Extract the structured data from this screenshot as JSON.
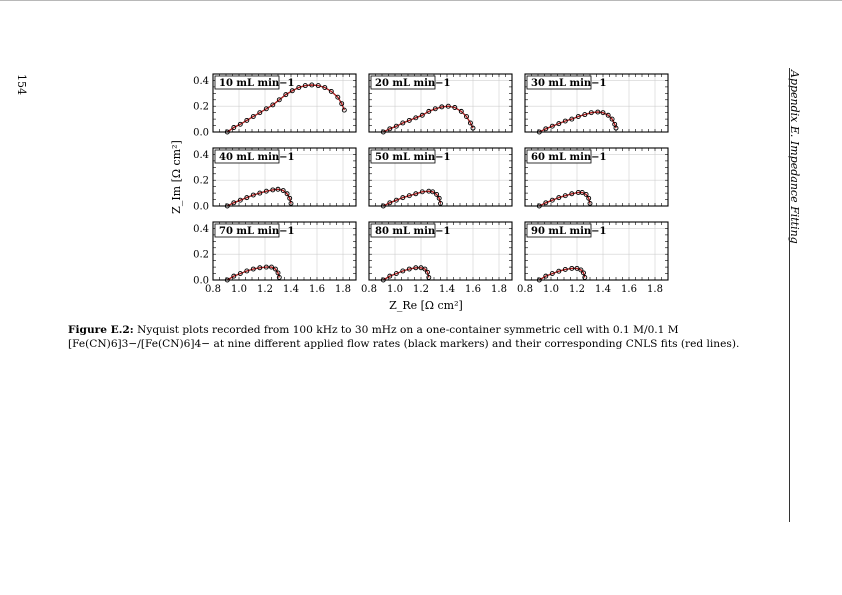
{
  "page": {
    "number": "154",
    "running_head": "Appendix E. Impedance Fitting"
  },
  "caption": {
    "label": "Figure E.2:",
    "text": "Nyquist plots recorded from 100 kHz to 30 mHz on a one-container symmetric cell with 0.1 M/0.1 M [Fe(CN)6]3−/[Fe(CN)6]4− at nine different applied flow rates (black markers) and their corresponding CNLS fits (red lines)."
  },
  "chart_data": {
    "type": "scatter",
    "grid": true,
    "xlabel": "Z_Re [Ω cm²]",
    "ylabel": "Z_Im [Ω cm²]",
    "xlim": [
      0.8,
      1.9
    ],
    "ylim": [
      0.0,
      0.45
    ],
    "xticks": [
      "0.8",
      "1.0",
      "1.2",
      "1.4",
      "1.6",
      "1.8"
    ],
    "yticks": [
      "0.0",
      "0.2",
      "0.4"
    ],
    "colors": {
      "markers": "#000000",
      "fit": "#b22222"
    },
    "panels": [
      {
        "label": "10 mL min−1",
        "x": [
          0.91,
          0.96,
          1.01,
          1.06,
          1.11,
          1.16,
          1.21,
          1.26,
          1.31,
          1.36,
          1.41,
          1.46,
          1.51,
          1.56,
          1.61,
          1.66,
          1.71,
          1.76,
          1.79,
          1.81
        ],
        "y": [
          0.0,
          0.035,
          0.06,
          0.09,
          0.12,
          0.15,
          0.18,
          0.21,
          0.25,
          0.29,
          0.32,
          0.345,
          0.36,
          0.365,
          0.36,
          0.345,
          0.315,
          0.27,
          0.22,
          0.17
        ]
      },
      {
        "label": "20 mL min−1",
        "x": [
          0.91,
          0.96,
          1.01,
          1.06,
          1.11,
          1.16,
          1.21,
          1.26,
          1.31,
          1.36,
          1.41,
          1.46,
          1.51,
          1.55,
          1.58,
          1.6
        ],
        "y": [
          0.0,
          0.025,
          0.045,
          0.07,
          0.09,
          0.11,
          0.13,
          0.16,
          0.18,
          0.195,
          0.2,
          0.19,
          0.16,
          0.12,
          0.07,
          0.03
        ]
      },
      {
        "label": "30 mL min−1",
        "x": [
          0.91,
          0.96,
          1.01,
          1.06,
          1.11,
          1.16,
          1.21,
          1.26,
          1.31,
          1.36,
          1.4,
          1.44,
          1.47,
          1.49,
          1.5
        ],
        "y": [
          0.0,
          0.025,
          0.045,
          0.065,
          0.085,
          0.1,
          0.12,
          0.135,
          0.15,
          0.155,
          0.15,
          0.13,
          0.1,
          0.06,
          0.03
        ]
      },
      {
        "label": "40 mL min−1",
        "x": [
          0.91,
          0.96,
          1.01,
          1.06,
          1.11,
          1.16,
          1.21,
          1.26,
          1.3,
          1.34,
          1.37,
          1.39,
          1.4
        ],
        "y": [
          0.0,
          0.025,
          0.045,
          0.065,
          0.085,
          0.1,
          0.115,
          0.125,
          0.13,
          0.12,
          0.095,
          0.06,
          0.02
        ]
      },
      {
        "label": "50 mL min−1",
        "x": [
          0.91,
          0.96,
          1.01,
          1.06,
          1.11,
          1.16,
          1.21,
          1.26,
          1.29,
          1.32,
          1.34,
          1.35
        ],
        "y": [
          0.0,
          0.025,
          0.045,
          0.065,
          0.08,
          0.095,
          0.11,
          0.115,
          0.11,
          0.09,
          0.06,
          0.02
        ]
      },
      {
        "label": "60 mL min−1",
        "x": [
          0.91,
          0.96,
          1.01,
          1.06,
          1.11,
          1.16,
          1.21,
          1.24,
          1.27,
          1.29,
          1.3
        ],
        "y": [
          0.0,
          0.025,
          0.045,
          0.065,
          0.08,
          0.095,
          0.105,
          0.105,
          0.09,
          0.06,
          0.02
        ]
      },
      {
        "label": "70 mL min−1",
        "x": [
          0.91,
          0.96,
          1.01,
          1.06,
          1.11,
          1.16,
          1.21,
          1.25,
          1.28,
          1.3,
          1.31
        ],
        "y": [
          0.0,
          0.03,
          0.05,
          0.07,
          0.085,
          0.095,
          0.1,
          0.1,
          0.085,
          0.055,
          0.02
        ]
      },
      {
        "label": "80 mL min−1",
        "x": [
          0.91,
          0.96,
          1.01,
          1.06,
          1.11,
          1.16,
          1.2,
          1.23,
          1.25,
          1.26
        ],
        "y": [
          0.0,
          0.03,
          0.05,
          0.07,
          0.085,
          0.095,
          0.095,
          0.085,
          0.06,
          0.02
        ]
      },
      {
        "label": "90 mL min−1",
        "x": [
          0.91,
          0.96,
          1.01,
          1.06,
          1.11,
          1.16,
          1.2,
          1.23,
          1.25,
          1.26
        ],
        "y": [
          0.0,
          0.03,
          0.05,
          0.068,
          0.082,
          0.09,
          0.09,
          0.078,
          0.055,
          0.02
        ]
      }
    ]
  }
}
